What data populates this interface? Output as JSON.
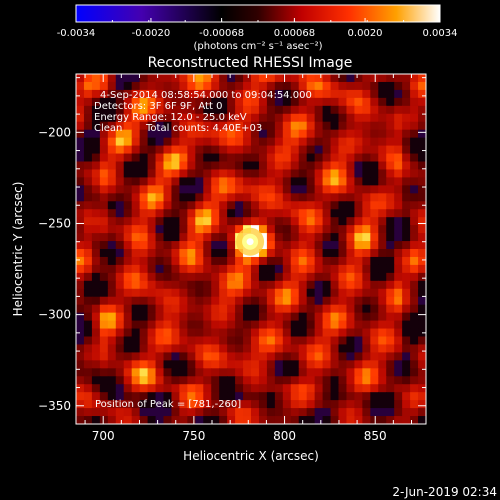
{
  "chart_data": {
    "type": "heatmap",
    "title": "Reconstructed RHESSI Image",
    "xlabel": "Heliocentric X (arcsec)",
    "ylabel": "Heliocentric Y (arcsec)",
    "xlim": [
      685,
      878
    ],
    "ylim": [
      -360,
      -168
    ],
    "xticks": [
      700,
      750,
      800,
      850
    ],
    "yticks": [
      -350,
      -300,
      -250,
      -200
    ],
    "colorbar": {
      "range": [
        -0.0034,
        0.0034
      ],
      "ticks": [
        "-0.0034",
        "-0.0020",
        "-0.00068",
        "0.00068",
        "0.0020",
        "0.0034"
      ],
      "unit": "(photons cm⁻² s⁻¹ asec⁻²)",
      "colormap": [
        "#0000ff",
        "#5000a0",
        "#000000",
        "#a00000",
        "#ff3000",
        "#ff9000",
        "#ffff60",
        "#ffffff"
      ]
    },
    "peak": {
      "x": 781,
      "y": -260
    },
    "annotations": {
      "time": "4-Sep-2014 08:58:54.000 to 09:04:54.000",
      "detectors": "Detectors: 3F 6F 9F, Att 0",
      "energy": "Energy Range: 12.0 - 25.0 keV",
      "method": "Clean",
      "counts": "Total counts: 4.40E+03",
      "peak_text": "Position of Peak = [781,-260]"
    },
    "date_stamp": "2-Jun-2019 02:34"
  }
}
